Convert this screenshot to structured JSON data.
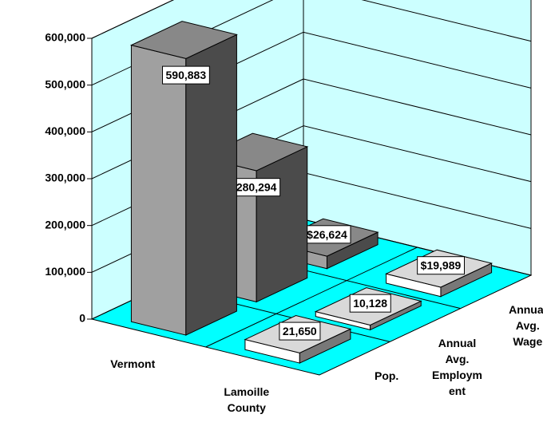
{
  "chart_data": {
    "type": "bar3d",
    "categories": [
      "Pop.",
      "Annual Avg. Employment",
      "Annual Avg. Wage"
    ],
    "series": [
      {
        "name": "Vermont",
        "color": "#a0a0a0",
        "values": [
          590883,
          280294,
          26624
        ],
        "value_labels": [
          "590,883",
          "280,294",
          "$26,624"
        ]
      },
      {
        "name": "Lamoille County",
        "color": "#ffffff",
        "values": [
          21650,
          10128,
          19989
        ],
        "value_labels": [
          "21,650",
          "10,128",
          "$19,989"
        ]
      }
    ],
    "ylim": [
      0,
      600000
    ],
    "yticks": [
      0,
      {
        "value": 100000,
        "label": "100,000"
      },
      {
        "value": 200000,
        "label": "200,000"
      },
      {
        "value": 300000,
        "label": "300,000"
      },
      {
        "value": 400000,
        "label": "400,000"
      },
      {
        "value": 500000,
        "label": "500,000"
      },
      {
        "value": 600000,
        "label": "600,000"
      }
    ],
    "grid": true,
    "floor_color": "#00ffff",
    "wall_color": "#ccffff"
  }
}
